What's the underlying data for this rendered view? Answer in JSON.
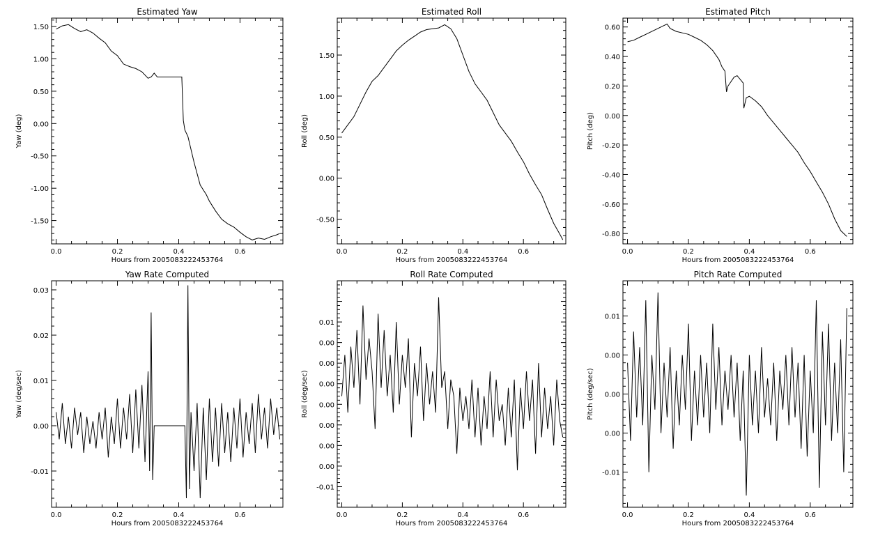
{
  "chart_data": [
    {
      "type": "line",
      "title": "Estimated Yaw",
      "xlabel": "Hours from 2005083222453764",
      "ylabel": "Yaw (deg)",
      "xlim": [
        -0.015,
        0.74
      ],
      "ylim": [
        -1.86,
        1.63
      ],
      "xticks": [
        "0.0",
        "0.2",
        "0.4",
        "0.6"
      ],
      "yticks": [
        {
          "v": 1.5,
          "label": "1.50"
        },
        {
          "v": 1.0,
          "label": "1.00"
        },
        {
          "v": 0.5,
          "label": "0.50"
        },
        {
          "v": 0.0,
          "label": "0.00"
        },
        {
          "v": -0.5,
          "label": "-0.50"
        },
        {
          "v": -1.0,
          "label": "-1.00"
        },
        {
          "v": -1.5,
          "label": "-1.50"
        }
      ],
      "series": [
        {
          "x": [
            0.0,
            0.02,
            0.04,
            0.06,
            0.08,
            0.1,
            0.12,
            0.14,
            0.16,
            0.18,
            0.2,
            0.22,
            0.24,
            0.26,
            0.28,
            0.3,
            0.31,
            0.32,
            0.33,
            0.36,
            0.4,
            0.41,
            0.415,
            0.42,
            0.43,
            0.45,
            0.47,
            0.49,
            0.5,
            0.52,
            0.54,
            0.56,
            0.58,
            0.6,
            0.62,
            0.64,
            0.66,
            0.68,
            0.7,
            0.72,
            0.73
          ],
          "y": [
            1.46,
            1.51,
            1.53,
            1.47,
            1.42,
            1.45,
            1.4,
            1.32,
            1.25,
            1.12,
            1.05,
            0.92,
            0.88,
            0.85,
            0.8,
            0.7,
            0.72,
            0.78,
            0.72,
            0.72,
            0.72,
            0.72,
            0.05,
            -0.1,
            -0.2,
            -0.6,
            -0.95,
            -1.1,
            -1.2,
            -1.35,
            -1.48,
            -1.55,
            -1.6,
            -1.68,
            -1.75,
            -1.8,
            -1.77,
            -1.79,
            -1.75,
            -1.72,
            -1.7
          ]
        }
      ]
    },
    {
      "type": "line",
      "title": "Estimated Roll",
      "xlabel": "Hours from 2005083222453764",
      "ylabel": "Roll (deg)",
      "xlim": [
        -0.015,
        0.74
      ],
      "ylim": [
        -0.8,
        1.95
      ],
      "xticks": [
        "0.0",
        "0.2",
        "0.4",
        "0.6"
      ],
      "yticks": [
        {
          "v": 1.5,
          "label": "1.50"
        },
        {
          "v": 1.0,
          "label": "1.00"
        },
        {
          "v": 0.5,
          "label": "0.50"
        },
        {
          "v": 0.0,
          "label": "0.00"
        },
        {
          "v": -0.5,
          "label": "-0.50"
        }
      ],
      "series": [
        {
          "x": [
            0.0,
            0.02,
            0.04,
            0.06,
            0.08,
            0.1,
            0.12,
            0.14,
            0.16,
            0.18,
            0.2,
            0.22,
            0.24,
            0.26,
            0.28,
            0.3,
            0.32,
            0.33,
            0.34,
            0.36,
            0.38,
            0.4,
            0.42,
            0.44,
            0.46,
            0.48,
            0.5,
            0.52,
            0.54,
            0.56,
            0.58,
            0.6,
            0.62,
            0.64,
            0.66,
            0.68,
            0.7,
            0.72,
            0.73
          ],
          "y": [
            0.55,
            0.65,
            0.75,
            0.9,
            1.05,
            1.18,
            1.25,
            1.35,
            1.45,
            1.55,
            1.62,
            1.68,
            1.73,
            1.78,
            1.81,
            1.82,
            1.83,
            1.85,
            1.87,
            1.82,
            1.7,
            1.5,
            1.3,
            1.15,
            1.05,
            0.95,
            0.8,
            0.65,
            0.55,
            0.45,
            0.32,
            0.2,
            0.05,
            -0.08,
            -0.2,
            -0.38,
            -0.55,
            -0.68,
            -0.75
          ]
        }
      ]
    },
    {
      "type": "line",
      "title": "Estimated Pitch",
      "xlabel": "Hours from 2005083222453764",
      "ylabel": "Pitch (deg)",
      "xlim": [
        -0.015,
        0.74
      ],
      "ylim": [
        -0.87,
        0.66
      ],
      "xticks": [
        "0.0",
        "0.2",
        "0.4",
        "0.6"
      ],
      "yticks": [
        {
          "v": 0.6,
          "label": "0.60"
        },
        {
          "v": 0.4,
          "label": "0.40"
        },
        {
          "v": 0.2,
          "label": "0.20"
        },
        {
          "v": 0.0,
          "label": "0.00"
        },
        {
          "v": -0.2,
          "label": "-0.20"
        },
        {
          "v": -0.4,
          "label": "-0.40"
        },
        {
          "v": -0.6,
          "label": "-0.60"
        },
        {
          "v": -0.8,
          "label": "-0.80"
        }
      ],
      "series": [
        {
          "x": [
            0.0,
            0.02,
            0.04,
            0.06,
            0.08,
            0.1,
            0.12,
            0.13,
            0.14,
            0.16,
            0.18,
            0.2,
            0.22,
            0.24,
            0.26,
            0.28,
            0.3,
            0.31,
            0.32,
            0.325,
            0.33,
            0.35,
            0.36,
            0.38,
            0.382,
            0.39,
            0.4,
            0.42,
            0.44,
            0.46,
            0.48,
            0.5,
            0.52,
            0.54,
            0.56,
            0.58,
            0.6,
            0.62,
            0.64,
            0.66,
            0.68,
            0.7,
            0.72
          ],
          "y": [
            0.5,
            0.51,
            0.53,
            0.55,
            0.57,
            0.59,
            0.61,
            0.62,
            0.59,
            0.57,
            0.56,
            0.55,
            0.53,
            0.51,
            0.48,
            0.44,
            0.38,
            0.33,
            0.3,
            0.16,
            0.2,
            0.26,
            0.27,
            0.22,
            0.05,
            0.12,
            0.13,
            0.1,
            0.06,
            0.0,
            -0.05,
            -0.1,
            -0.15,
            -0.2,
            -0.25,
            -0.32,
            -0.38,
            -0.45,
            -0.52,
            -0.6,
            -0.7,
            -0.78,
            -0.82
          ]
        }
      ]
    },
    {
      "type": "line",
      "title": "Yaw Rate Computed",
      "xlabel": "Hours from 2005083222453764",
      "ylabel": "Yaw (deg/sec)",
      "xlim": [
        -0.015,
        0.74
      ],
      "ylim": [
        -0.018,
        0.032
      ],
      "xticks": [
        "0.0",
        "0.2",
        "0.4",
        "0.6"
      ],
      "yticks": [
        {
          "v": 0.03,
          "label": "0.03"
        },
        {
          "v": 0.02,
          "label": "0.02"
        },
        {
          "v": 0.01,
          "label": "0.01"
        },
        {
          "v": 0.0,
          "label": "0.00"
        },
        {
          "v": -0.01,
          "label": "-0.01"
        }
      ],
      "series": [
        {
          "x": [
            0.0,
            0.01,
            0.02,
            0.03,
            0.04,
            0.05,
            0.06,
            0.07,
            0.08,
            0.09,
            0.1,
            0.11,
            0.12,
            0.13,
            0.14,
            0.15,
            0.16,
            0.17,
            0.18,
            0.19,
            0.2,
            0.21,
            0.22,
            0.23,
            0.24,
            0.25,
            0.26,
            0.27,
            0.28,
            0.29,
            0.3,
            0.305,
            0.31,
            0.315,
            0.32,
            0.33,
            0.36,
            0.4,
            0.42,
            0.425,
            0.43,
            0.435,
            0.44,
            0.45,
            0.46,
            0.47,
            0.48,
            0.49,
            0.5,
            0.51,
            0.52,
            0.53,
            0.54,
            0.55,
            0.56,
            0.57,
            0.58,
            0.59,
            0.6,
            0.61,
            0.62,
            0.63,
            0.64,
            0.65,
            0.66,
            0.67,
            0.68,
            0.69,
            0.7,
            0.71,
            0.72,
            0.73
          ],
          "y": [
            0.003,
            -0.003,
            0.005,
            -0.004,
            0.002,
            -0.005,
            0.004,
            -0.002,
            0.003,
            -0.006,
            0.002,
            -0.004,
            0.001,
            -0.005,
            0.003,
            -0.003,
            0.004,
            -0.007,
            0.002,
            -0.004,
            0.006,
            -0.005,
            0.004,
            -0.003,
            0.007,
            -0.006,
            0.008,
            -0.005,
            0.009,
            -0.008,
            0.012,
            -0.01,
            0.025,
            -0.012,
            0.0,
            0.0,
            0.0,
            0.0,
            0.0,
            -0.016,
            0.031,
            -0.014,
            0.003,
            -0.01,
            0.005,
            -0.016,
            0.004,
            -0.012,
            0.006,
            -0.008,
            0.004,
            -0.009,
            0.005,
            -0.006,
            0.003,
            -0.008,
            0.004,
            -0.005,
            0.006,
            -0.007,
            0.003,
            -0.004,
            0.005,
            -0.006,
            0.007,
            -0.003,
            0.004,
            -0.005,
            0.006,
            -0.002,
            0.004,
            -0.003
          ]
        }
      ]
    },
    {
      "type": "line",
      "title": "Roll Rate Computed",
      "xlabel": "Hours from 2005083222453764",
      "ylabel": "Roll (deg/sec)",
      "xlim": [
        -0.015,
        0.74
      ],
      "ylim": [
        -0.0125,
        0.015
      ],
      "xticks": [
        "0.0",
        "0.2",
        "0.4",
        "0.6"
      ],
      "yticks": [
        {
          "v": 0.01,
          "label": "0.01"
        },
        {
          "v": 0.0075,
          "label": "0.00"
        },
        {
          "v": 0.005,
          "label": "0.00"
        },
        {
          "v": 0.0025,
          "label": "0.00"
        },
        {
          "v": 0.0,
          "label": "0.00"
        },
        {
          "v": -0.0025,
          "label": "0.00"
        },
        {
          "v": -0.005,
          "label": "0.00"
        },
        {
          "v": -0.0075,
          "label": "0.00"
        },
        {
          "v": -0.01,
          "label": "-0.01"
        }
      ],
      "series": [
        {
          "x": [
            0.0,
            0.01,
            0.02,
            0.03,
            0.04,
            0.05,
            0.06,
            0.07,
            0.08,
            0.09,
            0.1,
            0.11,
            0.12,
            0.13,
            0.14,
            0.15,
            0.16,
            0.17,
            0.18,
            0.19,
            0.2,
            0.21,
            0.22,
            0.23,
            0.24,
            0.25,
            0.26,
            0.27,
            0.28,
            0.29,
            0.3,
            0.31,
            0.32,
            0.33,
            0.34,
            0.35,
            0.36,
            0.37,
            0.38,
            0.39,
            0.4,
            0.41,
            0.42,
            0.43,
            0.44,
            0.45,
            0.46,
            0.47,
            0.48,
            0.49,
            0.5,
            0.51,
            0.52,
            0.53,
            0.54,
            0.55,
            0.56,
            0.57,
            0.58,
            0.59,
            0.6,
            0.61,
            0.62,
            0.63,
            0.64,
            0.65,
            0.66,
            0.67,
            0.68,
            0.69,
            0.7,
            0.71,
            0.72,
            0.73
          ],
          "y": [
            0.001,
            0.006,
            -0.001,
            0.007,
            0.002,
            0.009,
            0.0,
            0.012,
            0.003,
            0.008,
            0.004,
            -0.003,
            0.011,
            0.002,
            0.009,
            0.001,
            0.006,
            -0.001,
            0.01,
            0.0,
            0.006,
            0.002,
            0.008,
            -0.004,
            0.005,
            0.001,
            0.007,
            -0.002,
            0.005,
            0.0,
            0.004,
            -0.001,
            0.013,
            0.002,
            0.004,
            -0.003,
            0.003,
            0.001,
            -0.006,
            0.002,
            -0.002,
            0.001,
            -0.003,
            0.003,
            -0.004,
            0.002,
            -0.005,
            0.001,
            -0.003,
            0.004,
            -0.004,
            0.003,
            -0.002,
            0.0,
            -0.005,
            0.002,
            -0.004,
            0.003,
            -0.008,
            0.002,
            -0.003,
            0.004,
            -0.002,
            0.003,
            -0.006,
            0.005,
            -0.004,
            0.002,
            -0.003,
            0.001,
            -0.005,
            0.003,
            -0.002,
            -0.004
          ]
        }
      ]
    },
    {
      "type": "line",
      "title": "Pitch Rate Computed",
      "xlabel": "Hours from 2005083222453764",
      "ylabel": "Pitch (deg/sec)",
      "xlim": [
        -0.015,
        0.74
      ],
      "ylim": [
        -0.0145,
        0.0145
      ],
      "xticks": [
        "0.0",
        "0.2",
        "0.4",
        "0.6"
      ],
      "yticks": [
        {
          "v": 0.01,
          "label": "0.01"
        },
        {
          "v": 0.005,
          "label": "0.00"
        },
        {
          "v": 0.0,
          "label": "0.00"
        },
        {
          "v": -0.005,
          "label": "0.00"
        },
        {
          "v": -0.01,
          "label": "-0.01"
        }
      ],
      "series": [
        {
          "x": [
            0.0,
            0.01,
            0.02,
            0.03,
            0.04,
            0.05,
            0.06,
            0.07,
            0.08,
            0.09,
            0.1,
            0.11,
            0.12,
            0.13,
            0.14,
            0.15,
            0.16,
            0.17,
            0.18,
            0.19,
            0.2,
            0.21,
            0.22,
            0.23,
            0.24,
            0.25,
            0.26,
            0.27,
            0.28,
            0.29,
            0.3,
            0.31,
            0.32,
            0.33,
            0.34,
            0.35,
            0.36,
            0.37,
            0.38,
            0.39,
            0.4,
            0.41,
            0.42,
            0.43,
            0.44,
            0.45,
            0.46,
            0.47,
            0.48,
            0.49,
            0.5,
            0.51,
            0.52,
            0.53,
            0.54,
            0.55,
            0.56,
            0.57,
            0.58,
            0.59,
            0.6,
            0.61,
            0.62,
            0.63,
            0.64,
            0.65,
            0.66,
            0.67,
            0.68,
            0.69,
            0.7,
            0.71,
            0.72
          ],
          "y": [
            0.004,
            -0.006,
            0.008,
            -0.003,
            0.006,
            -0.004,
            0.012,
            -0.01,
            0.005,
            -0.002,
            0.013,
            -0.005,
            0.004,
            -0.003,
            0.006,
            -0.007,
            0.003,
            -0.004,
            0.005,
            -0.002,
            0.009,
            -0.006,
            0.003,
            -0.004,
            0.005,
            -0.003,
            0.004,
            -0.005,
            0.009,
            -0.002,
            0.006,
            -0.004,
            0.003,
            -0.002,
            0.005,
            -0.003,
            0.004,
            -0.006,
            0.003,
            -0.013,
            0.005,
            -0.004,
            0.003,
            -0.005,
            0.006,
            -0.003,
            0.002,
            -0.004,
            0.004,
            -0.006,
            0.003,
            -0.002,
            0.005,
            -0.004,
            0.006,
            -0.003,
            0.004,
            -0.007,
            0.005,
            -0.008,
            0.003,
            -0.005,
            0.012,
            -0.012,
            0.008,
            -0.004,
            0.009,
            -0.006,
            0.004,
            -0.005,
            0.007,
            -0.01,
            0.011
          ]
        }
      ]
    }
  ]
}
